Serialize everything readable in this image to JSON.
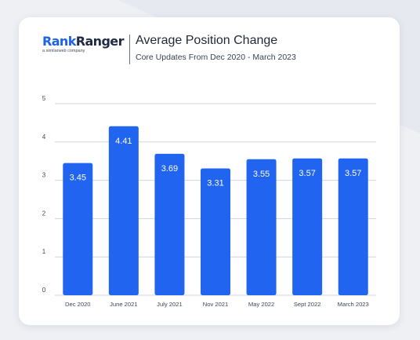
{
  "brand": {
    "name_part1": "Rank",
    "name_part2": "Ranger",
    "tagline": "a similarweb company"
  },
  "colors": {
    "bar": "#2164f0",
    "brand_blue": "#1d63e8",
    "grid": "#cfd3dc",
    "background": "#eef0f4"
  },
  "chart_data": {
    "type": "bar",
    "title": "Average Position Change",
    "subtitle": "Core Updates From Dec 2020 - March 2023",
    "categories": [
      "Dec 2020",
      "June 2021",
      "July 2021",
      "Nov 2021",
      "May 2022",
      "Sept 2022",
      "March 2023"
    ],
    "values": [
      3.45,
      4.41,
      3.69,
      3.31,
      3.55,
      3.57,
      3.57
    ],
    "value_labels": [
      "3.45",
      "4.41",
      "3.69",
      "3.31",
      "3.55",
      "3.57",
      "3.57"
    ],
    "ylim": [
      0,
      5
    ],
    "yticks": [
      0,
      1,
      2,
      3,
      4,
      5
    ],
    "ytick_labels": [
      "0",
      "1",
      "2",
      "3",
      "4",
      "5"
    ],
    "grid": true,
    "legend": "none",
    "xlabel": "",
    "ylabel": ""
  }
}
